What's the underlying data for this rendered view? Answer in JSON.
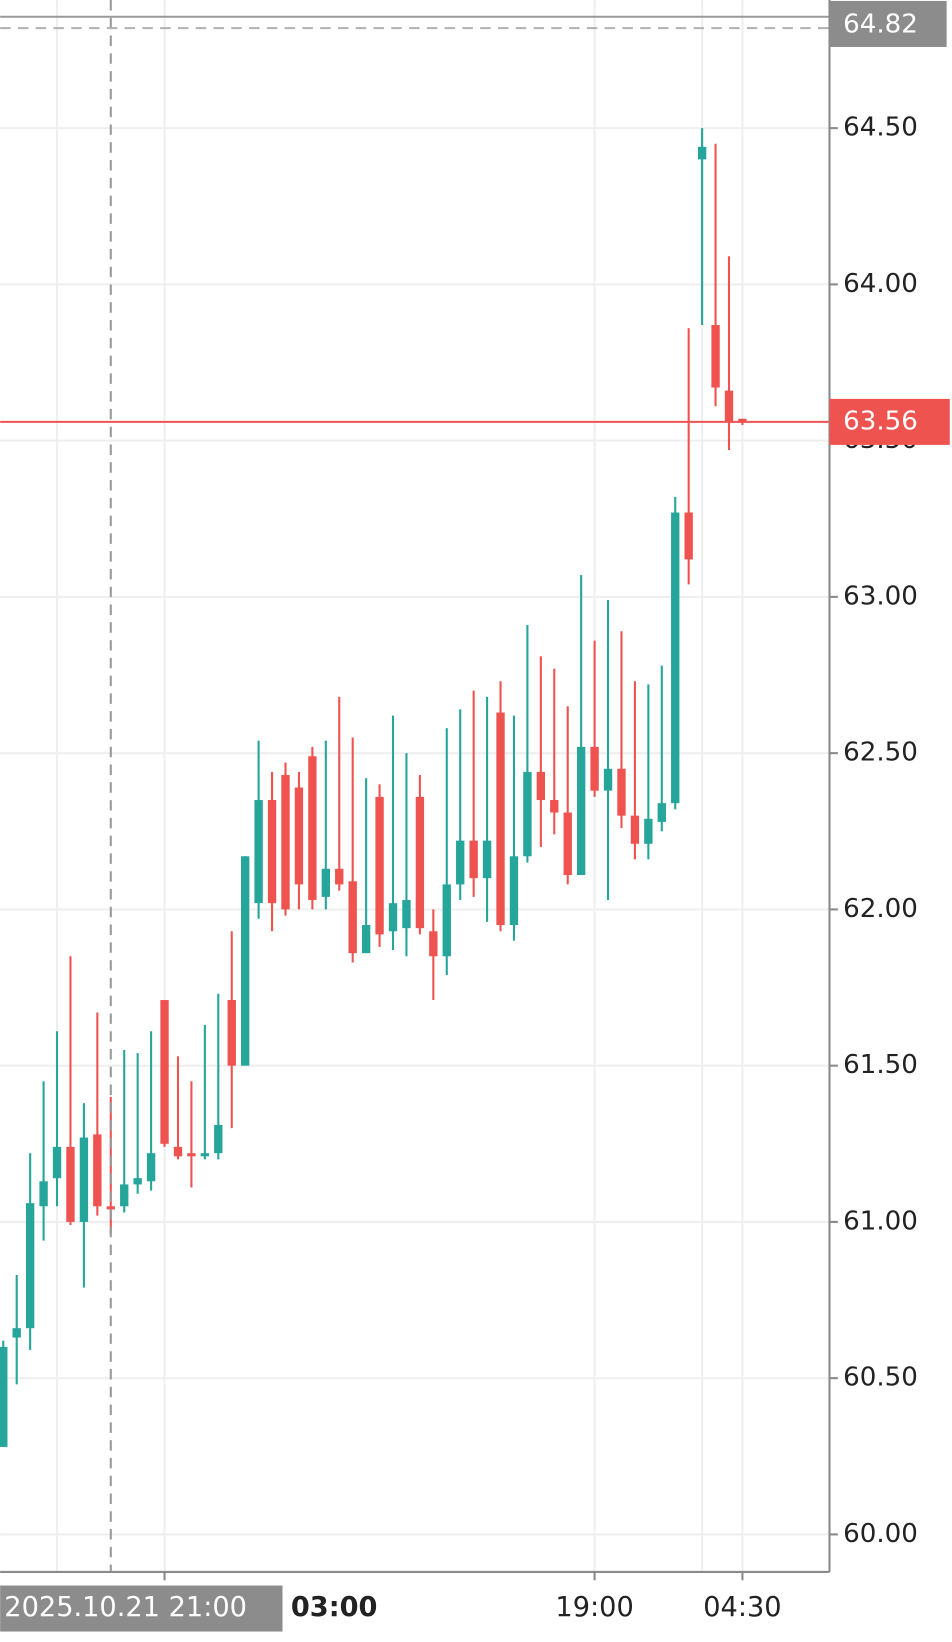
{
  "chart_data": {
    "type": "candlestick",
    "up_color": "#26a69a",
    "down_color": "#ef5350",
    "ylim": [
      59.88,
      64.91
    ],
    "yticks": [
      {
        "value": 60,
        "label": "60.00"
      },
      {
        "value": 60.5,
        "label": "60.50"
      },
      {
        "value": 61,
        "label": "61.00"
      },
      {
        "value": 61.5,
        "label": "61.50"
      },
      {
        "value": 62,
        "label": "62.00"
      },
      {
        "value": 62.5,
        "label": "62.50"
      },
      {
        "value": 63,
        "label": "63.00"
      },
      {
        "value": 63.5,
        "label": "63.50"
      },
      {
        "value": 64,
        "label": "64.00"
      },
      {
        "value": 64.5,
        "label": "64.50"
      }
    ],
    "grid": true,
    "last_price": 63.56,
    "crosshair_price": 64.82,
    "crosshair_time": "2025.10.21 21:00",
    "xticks": [
      "03:00",
      "19:00",
      "04:30"
    ],
    "series": [
      {
        "open": [
          60.28,
          60.63,
          60.66,
          61.05,
          61.14,
          61.24,
          61.0,
          61.28,
          61.05,
          61.05,
          61.12,
          61.13,
          61.71,
          61.24,
          61.22,
          61.21,
          61.22,
          61.71,
          61.5,
          62.02,
          62.35,
          62.43,
          62.39,
          62.49,
          62.04,
          62.13,
          62.09,
          61.86,
          62.36,
          61.93,
          61.94,
          62.36,
          61.93,
          61.85,
          62.08,
          62.22,
          62.1,
          62.63,
          61.95,
          62.17,
          62.44,
          62.35,
          62.31,
          62.11,
          62.52,
          62.38,
          62.45,
          62.3,
          62.21,
          62.28,
          62.34,
          63.27,
          64.4,
          63.87,
          63.66,
          63.57
        ],
        "high": [
          60.62,
          60.83,
          61.22,
          61.45,
          61.61,
          61.85,
          61.38,
          61.67,
          61.4,
          61.55,
          61.54,
          61.61,
          61.71,
          61.53,
          61.45,
          61.63,
          61.73,
          61.93,
          62.17,
          62.54,
          62.44,
          62.47,
          62.44,
          62.52,
          62.54,
          62.68,
          62.55,
          62.42,
          62.4,
          62.62,
          62.5,
          62.43,
          62.0,
          62.58,
          62.64,
          62.7,
          62.68,
          62.73,
          62.62,
          62.91,
          62.81,
          62.77,
          62.65,
          63.07,
          62.86,
          62.99,
          62.89,
          62.73,
          62.72,
          62.78,
          63.32,
          63.86,
          64.5,
          64.45,
          64.09,
          63.57
        ],
        "low": [
          60.28,
          60.48,
          60.59,
          60.94,
          61.05,
          60.99,
          60.79,
          61.02,
          60.96,
          61.03,
          61.09,
          61.1,
          61.24,
          61.2,
          61.11,
          61.2,
          61.2,
          61.3,
          61.5,
          61.97,
          61.93,
          61.98,
          62.0,
          62.0,
          62.0,
          62.06,
          61.83,
          61.86,
          61.88,
          61.87,
          61.85,
          61.92,
          61.71,
          61.79,
          62.03,
          62.04,
          61.96,
          61.93,
          61.9,
          62.15,
          62.2,
          62.24,
          62.08,
          62.11,
          62.36,
          62.03,
          62.26,
          62.16,
          62.16,
          62.25,
          62.32,
          63.04,
          63.87,
          63.61,
          63.47,
          63.55
        ],
        "close": [
          60.6,
          60.66,
          61.06,
          61.13,
          61.24,
          61.0,
          61.27,
          61.05,
          61.04,
          61.12,
          61.14,
          61.22,
          61.25,
          61.21,
          61.21,
          61.22,
          61.31,
          61.5,
          62.17,
          62.35,
          62.02,
          62.0,
          62.08,
          62.03,
          62.13,
          62.08,
          61.86,
          61.95,
          61.92,
          62.02,
          62.03,
          61.94,
          61.85,
          62.08,
          62.22,
          62.1,
          62.22,
          61.95,
          62.17,
          62.44,
          62.35,
          62.31,
          62.11,
          62.52,
          62.38,
          62.45,
          62.3,
          62.21,
          62.29,
          62.34,
          63.27,
          63.12,
          64.44,
          63.67,
          63.56,
          63.56
        ]
      }
    ]
  }
}
